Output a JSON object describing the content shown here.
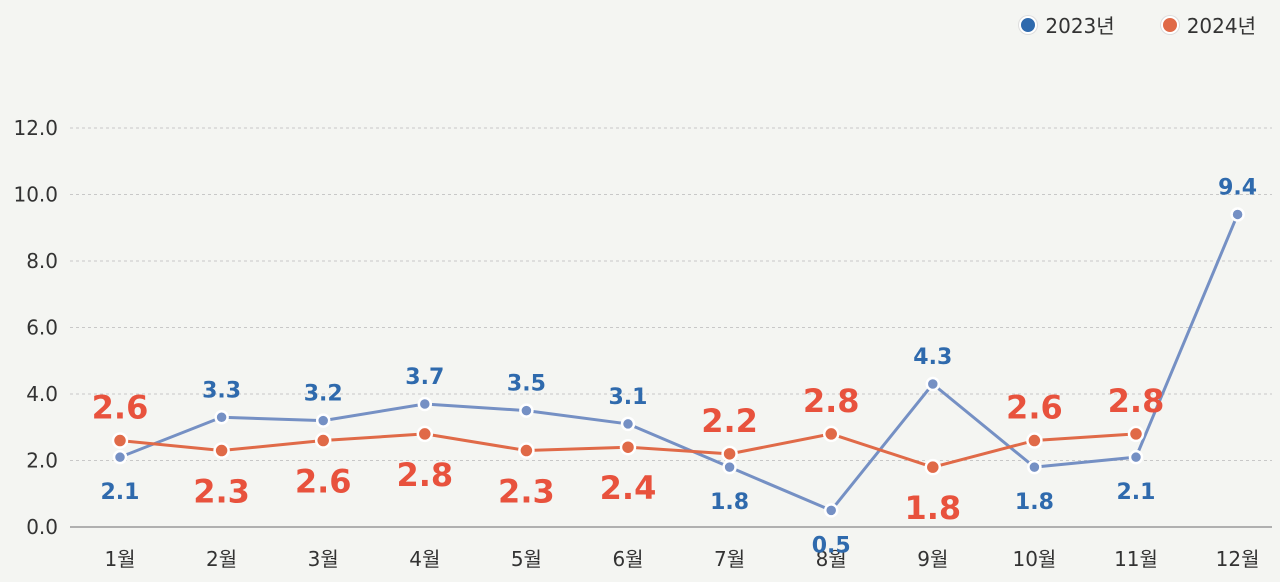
{
  "chart_data": {
    "type": "line",
    "categories": [
      "1월",
      "2월",
      "3월",
      "4월",
      "5월",
      "6월",
      "7월",
      "8월",
      "9월",
      "10월",
      "11월",
      "12월"
    ],
    "series": [
      {
        "name": "2023년",
        "color": "#2f6aad",
        "line_color": "#7590c4",
        "values": [
          2.1,
          3.3,
          3.2,
          3.7,
          3.5,
          3.1,
          1.8,
          0.5,
          4.3,
          1.8,
          2.1,
          9.4
        ]
      },
      {
        "name": "2024년",
        "color": "#e8523d",
        "line_color": "#e06a48",
        "values": [
          2.6,
          2.3,
          2.6,
          2.8,
          2.3,
          2.4,
          2.2,
          2.8,
          1.8,
          2.6,
          2.8,
          null
        ]
      }
    ],
    "y_ticks": [
      "0.0",
      "2.0",
      "4.0",
      "6.0",
      "8.0",
      "10.0",
      "12.0"
    ],
    "ylim": [
      0,
      12
    ],
    "grid": true,
    "legend": "top-right"
  }
}
